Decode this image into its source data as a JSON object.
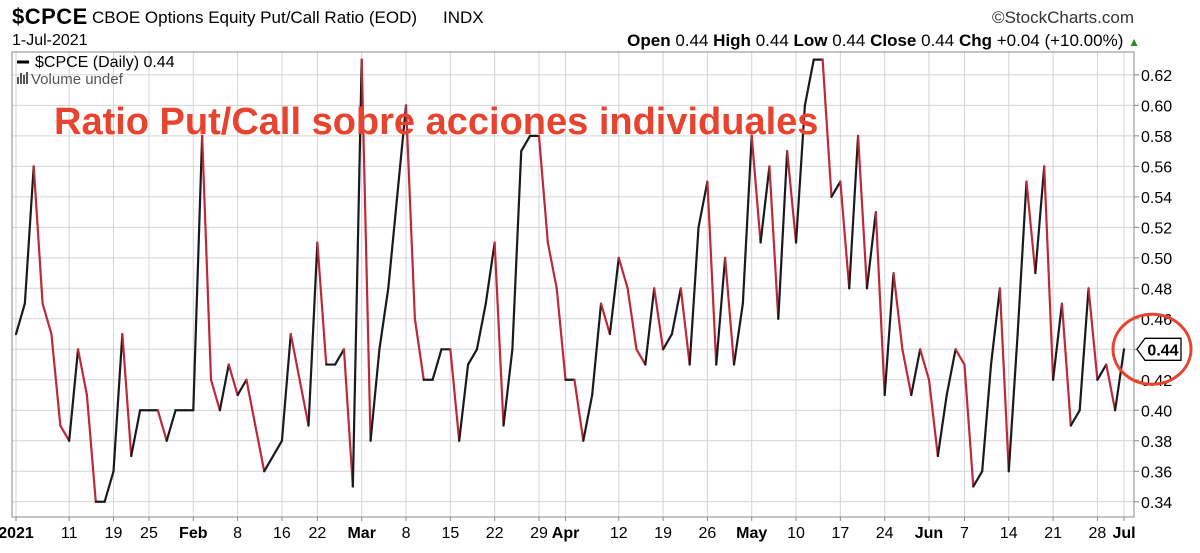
{
  "header": {
    "symbol": "$CPCE",
    "description": "CBOE Options Equity Put/Call Ratio (EOD)",
    "exchange": "INDX",
    "source": "©StockCharts.com",
    "date": "1-Jul-2021",
    "open_label": "Open",
    "open": "0.44",
    "high_label": "High",
    "high": "0.44",
    "low_label": "Low",
    "low": "0.44",
    "close_label": "Close",
    "close": "0.44",
    "chg_label": "Chg",
    "chg": "+0.04 (+10.00%)"
  },
  "legend": {
    "series": "$CPCE (Daily) 0.44",
    "volume": "Volume undef"
  },
  "annotation": {
    "text": "Ratio Put/Call sobre acciones individuales",
    "color": "#e8432e",
    "circle_color": "#e8432e"
  },
  "last_value_label": "0.44",
  "colors": {
    "up": "#1a1a1a",
    "down": "#c0283a",
    "grid": "#d4d4d4"
  },
  "chart_data": {
    "type": "line",
    "title": "",
    "xlabel": "",
    "ylabel": "",
    "ylim": [
      0.33,
      0.635
    ],
    "y_ticks": [
      0.34,
      0.36,
      0.38,
      0.4,
      0.42,
      0.44,
      0.46,
      0.48,
      0.5,
      0.52,
      0.54,
      0.56,
      0.58,
      0.6,
      0.62
    ],
    "x_tick_labels": [
      {
        "label": "2021",
        "bold": true,
        "day": 0
      },
      {
        "label": "11",
        "bold": false,
        "day": 6
      },
      {
        "label": "19",
        "bold": false,
        "day": 11
      },
      {
        "label": "25",
        "bold": false,
        "day": 15
      },
      {
        "label": "Feb",
        "bold": true,
        "day": 20
      },
      {
        "label": "8",
        "bold": false,
        "day": 25
      },
      {
        "label": "16",
        "bold": false,
        "day": 30
      },
      {
        "label": "22",
        "bold": false,
        "day": 34
      },
      {
        "label": "Mar",
        "bold": true,
        "day": 39
      },
      {
        "label": "8",
        "bold": false,
        "day": 44
      },
      {
        "label": "15",
        "bold": false,
        "day": 49
      },
      {
        "label": "22",
        "bold": false,
        "day": 54
      },
      {
        "label": "29",
        "bold": false,
        "day": 59
      },
      {
        "label": "Apr",
        "bold": true,
        "day": 62
      },
      {
        "label": "12",
        "bold": false,
        "day": 68
      },
      {
        "label": "19",
        "bold": false,
        "day": 73
      },
      {
        "label": "26",
        "bold": false,
        "day": 78
      },
      {
        "label": "May",
        "bold": true,
        "day": 83
      },
      {
        "label": "10",
        "bold": false,
        "day": 88
      },
      {
        "label": "17",
        "bold": false,
        "day": 93
      },
      {
        "label": "24",
        "bold": false,
        "day": 98
      },
      {
        "label": "Jun",
        "bold": true,
        "day": 103
      },
      {
        "label": "7",
        "bold": false,
        "day": 107
      },
      {
        "label": "14",
        "bold": false,
        "day": 112
      },
      {
        "label": "21",
        "bold": false,
        "day": 117
      },
      {
        "label": "28",
        "bold": false,
        "day": 122
      },
      {
        "label": "Jul",
        "bold": true,
        "day": 125
      }
    ],
    "series": [
      {
        "values": [
          0.45,
          0.47,
          0.56,
          0.47,
          0.45,
          0.39,
          0.38,
          0.44,
          0.41,
          0.34,
          0.34,
          0.36,
          0.45,
          0.37,
          0.4,
          0.4,
          0.4,
          0.38,
          0.4,
          0.4,
          0.4,
          0.58,
          0.42,
          0.4,
          0.43,
          0.41,
          0.42,
          0.39,
          0.36,
          0.37,
          0.38,
          0.45,
          0.42,
          0.39,
          0.51,
          0.43,
          0.43,
          0.44,
          0.35,
          0.63,
          0.38,
          0.44,
          0.48,
          0.54,
          0.6,
          0.46,
          0.42,
          0.42,
          0.44,
          0.44,
          0.38,
          0.43,
          0.44,
          0.47,
          0.51,
          0.39,
          0.44,
          0.57,
          0.58,
          0.58,
          0.51,
          0.48,
          0.42,
          0.42,
          0.38,
          0.41,
          0.47,
          0.45,
          0.5,
          0.48,
          0.44,
          0.43,
          0.48,
          0.44,
          0.45,
          0.48,
          0.43,
          0.52,
          0.55,
          0.43,
          0.5,
          0.43,
          0.47,
          0.58,
          0.51,
          0.56,
          0.46,
          0.57,
          0.51,
          0.6,
          0.63,
          0.63,
          0.54,
          0.55,
          0.48,
          0.58,
          0.48,
          0.53,
          0.41,
          0.49,
          0.44,
          0.41,
          0.44,
          0.42,
          0.37,
          0.41,
          0.44,
          0.43,
          0.35,
          0.36,
          0.43,
          0.48,
          0.36,
          0.45,
          0.55,
          0.49,
          0.56,
          0.42,
          0.47,
          0.39,
          0.4,
          0.48,
          0.42,
          0.43,
          0.4,
          0.44
        ]
      }
    ],
    "grid": true,
    "legend": "top-left"
  }
}
